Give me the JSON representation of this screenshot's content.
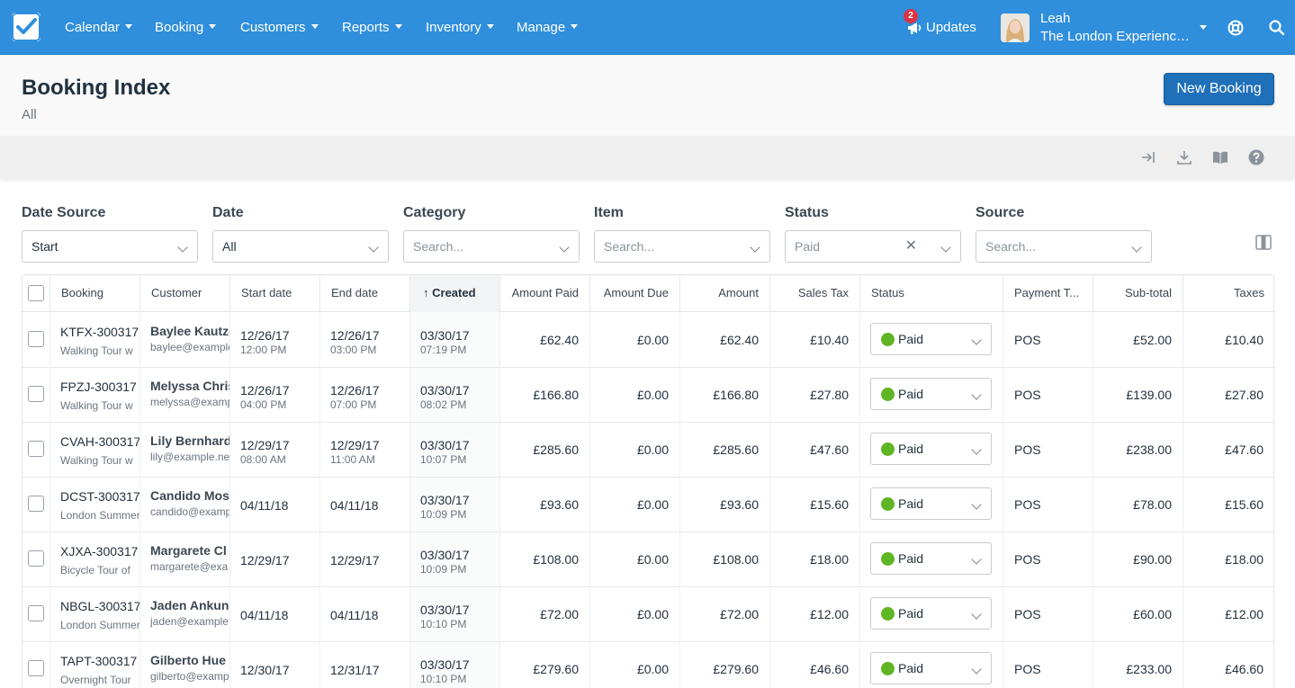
{
  "nav": {
    "items": [
      "Calendar",
      "Booking",
      "Customers",
      "Reports",
      "Inventory",
      "Manage"
    ],
    "updates_label": "Updates",
    "updates_count": "2",
    "user_name": "Leah",
    "user_company": "The London Experienc…",
    "brand_color": "#2f8fdd"
  },
  "page": {
    "title": "Booking Index",
    "subtitle": "All",
    "new_button": "New Booking"
  },
  "filters": {
    "date_source": {
      "label": "Date Source",
      "value": "Start"
    },
    "date": {
      "label": "Date",
      "value": "All"
    },
    "category": {
      "label": "Category",
      "placeholder": "Search..."
    },
    "item": {
      "label": "Item",
      "placeholder": "Search..."
    },
    "status": {
      "label": "Status",
      "value": "Paid",
      "clear": "✕"
    },
    "source": {
      "label": "Source",
      "placeholder": "Search..."
    }
  },
  "table": {
    "columns": [
      "Booking",
      "Customer",
      "Start date",
      "End date",
      "Created",
      "Amount Paid",
      "Amount Due",
      "Amount",
      "Sales Tax",
      "Status",
      "Payment T...",
      "Sub-total",
      "Taxes"
    ],
    "sort_arrow": "↑",
    "rows": [
      {
        "code": "KTFX-300317",
        "item": "Walking Tour w",
        "name": "Baylee Kautzer",
        "email": "baylee@example",
        "start": "12/26/17",
        "start_time": "12:00 PM",
        "end": "12/26/17",
        "end_time": "03:00 PM",
        "created": "03/30/17",
        "created_time": "07:19 PM",
        "paid": "£62.40",
        "due": "£0.00",
        "amount": "£62.40",
        "tax": "£10.40",
        "status": "Paid",
        "payment": "POS",
        "subtotal": "£52.00",
        "taxes": "£10.40"
      },
      {
        "code": "FPZJ-300317",
        "item": "Walking Tour w",
        "name": "Melyssa Christ",
        "email": "melyssa@example",
        "start": "12/26/17",
        "start_time": "04:00 PM",
        "end": "12/26/17",
        "end_time": "07:00 PM",
        "created": "03/30/17",
        "created_time": "08:02 PM",
        "paid": "£166.80",
        "due": "£0.00",
        "amount": "£166.80",
        "tax": "£27.80",
        "status": "Paid",
        "payment": "POS",
        "subtotal": "£139.00",
        "taxes": "£27.80"
      },
      {
        "code": "CVAH-300317",
        "item": "Walking Tour w",
        "name": "Lily Bernhard",
        "email": "lily@example.net",
        "start": "12/29/17",
        "start_time": "08:00 AM",
        "end": "12/29/17",
        "end_time": "11:00 AM",
        "created": "03/30/17",
        "created_time": "10:07 PM",
        "paid": "£285.60",
        "due": "£0.00",
        "amount": "£285.60",
        "tax": "£47.60",
        "status": "Paid",
        "payment": "POS",
        "subtotal": "£238.00",
        "taxes": "£47.60"
      },
      {
        "code": "DCST-300317",
        "item": "London Summer",
        "name": "Candido Moss",
        "email": "candido@example",
        "start": "04/11/18",
        "start_time": "",
        "end": "04/11/18",
        "end_time": "",
        "created": "03/30/17",
        "created_time": "10:09 PM",
        "paid": "£93.60",
        "due": "£0.00",
        "amount": "£93.60",
        "tax": "£15.60",
        "status": "Paid",
        "payment": "POS",
        "subtotal": "£78.00",
        "taxes": "£15.60"
      },
      {
        "code": "XJXA-300317",
        "item": "Bicycle Tour of",
        "name": "Margarete Cl",
        "email": "margarete@exa",
        "start": "12/29/17",
        "start_time": "",
        "end": "12/29/17",
        "end_time": "",
        "created": "03/30/17",
        "created_time": "10:09 PM",
        "paid": "£108.00",
        "due": "£0.00",
        "amount": "£108.00",
        "tax": "£18.00",
        "status": "Paid",
        "payment": "POS",
        "subtotal": "£90.00",
        "taxes": "£18.00"
      },
      {
        "code": "NBGL-300317",
        "item": "London Summer",
        "name": "Jaden Ankunding",
        "email": "jaden@example",
        "start": "04/11/18",
        "start_time": "",
        "end": "04/11/18",
        "end_time": "",
        "created": "03/30/17",
        "created_time": "10:10 PM",
        "paid": "£72.00",
        "due": "£0.00",
        "amount": "£72.00",
        "tax": "£12.00",
        "status": "Paid",
        "payment": "POS",
        "subtotal": "£60.00",
        "taxes": "£12.00"
      },
      {
        "code": "TAPT-300317",
        "item": "Overnight Tour",
        "name": "Gilberto Hue",
        "email": "gilberto@example",
        "start": "12/30/17",
        "start_time": "",
        "end": "12/31/17",
        "end_time": "",
        "created": "03/30/17",
        "created_time": "10:10 PM",
        "paid": "£279.60",
        "due": "£0.00",
        "amount": "£279.60",
        "tax": "£46.60",
        "status": "Paid",
        "payment": "POS",
        "subtotal": "£233.00",
        "taxes": "£46.60"
      }
    ]
  },
  "colors": {
    "paid_dot": "#5fb524",
    "primary_button": "#1f6fb9"
  }
}
